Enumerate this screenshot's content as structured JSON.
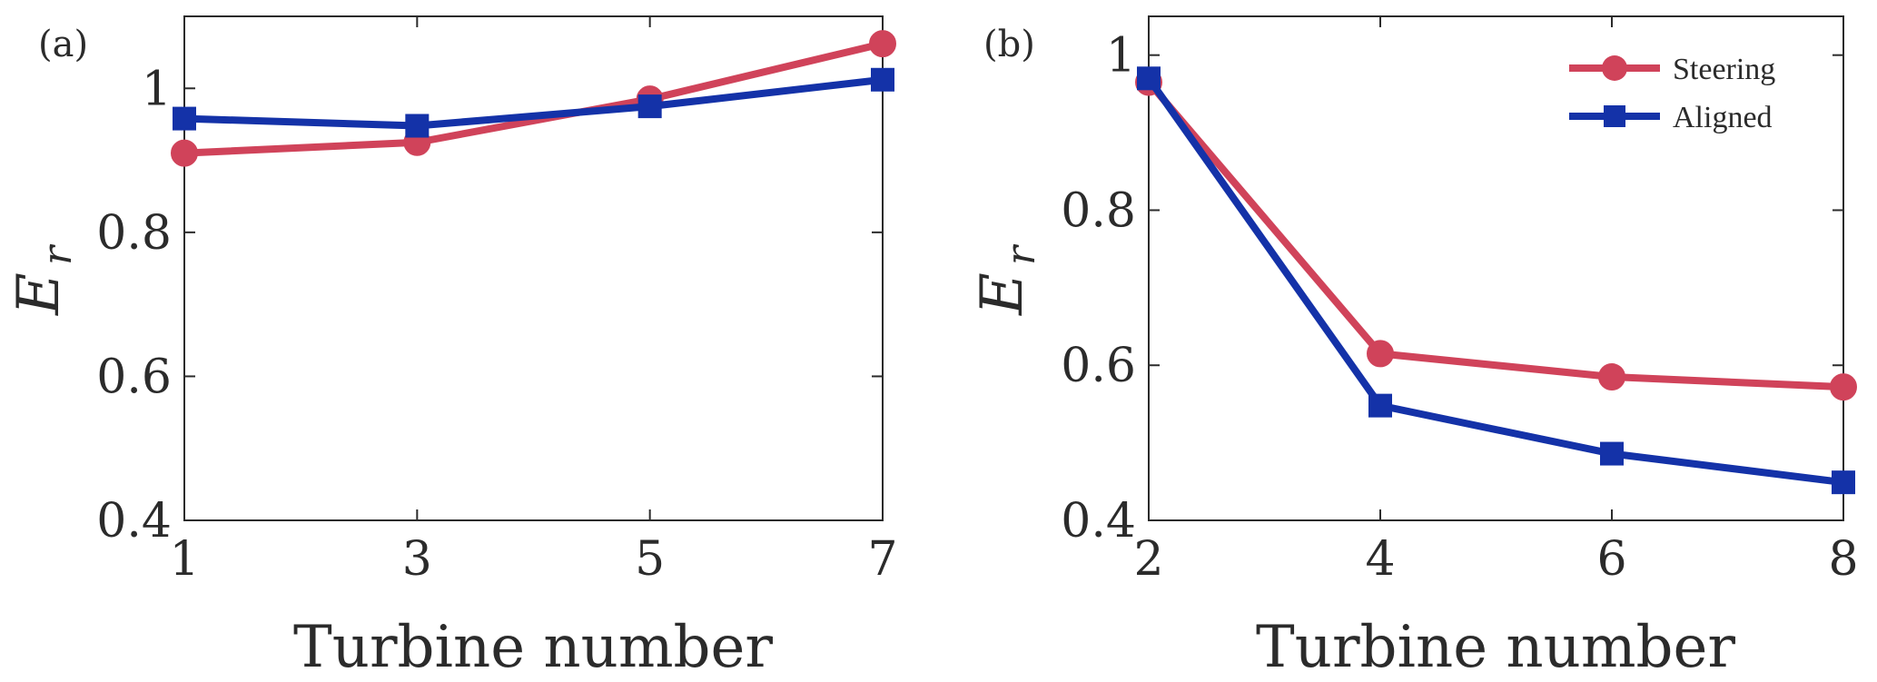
{
  "chart_data": [
    {
      "type": "line",
      "panel_label": "(a)",
      "xlabel": "Turbine number",
      "ylabel": {
        "main": "E",
        "sub": "r"
      },
      "x": [
        1,
        3,
        5,
        7
      ],
      "xticks": [
        1,
        3,
        5,
        7
      ],
      "xlim": [
        1,
        7
      ],
      "ylim": [
        0.4,
        1.1
      ],
      "yticks": [
        0.4,
        0.6,
        0.8,
        1
      ],
      "ytick_labels": [
        "0.4",
        "0.6",
        "0.8",
        "1"
      ],
      "legend": null,
      "series": [
        {
          "name": "Steering",
          "color": "#d0435a",
          "marker": "circle",
          "values": [
            0.91,
            0.925,
            0.985,
            1.062
          ]
        },
        {
          "name": "Aligned",
          "color": "#1432a8",
          "marker": "square",
          "values": [
            0.958,
            0.948,
            0.975,
            1.012
          ]
        }
      ]
    },
    {
      "type": "line",
      "panel_label": "(b)",
      "xlabel": "Turbine number",
      "ylabel": {
        "main": "E",
        "sub": "r"
      },
      "x": [
        2,
        4,
        6,
        8
      ],
      "xticks": [
        2,
        4,
        6,
        8
      ],
      "xlim": [
        2,
        8
      ],
      "ylim": [
        0.4,
        1.05
      ],
      "yticks": [
        0.4,
        0.6,
        0.8,
        1
      ],
      "ytick_labels": [
        "0.4",
        "0.6",
        "0.8",
        "1"
      ],
      "legend": "top-right",
      "series": [
        {
          "name": "Steering",
          "color": "#d0435a",
          "marker": "circle",
          "values": [
            0.965,
            0.615,
            0.585,
            0.572
          ]
        },
        {
          "name": "Aligned",
          "color": "#1432a8",
          "marker": "square",
          "values": [
            0.97,
            0.548,
            0.486,
            0.449
          ]
        }
      ]
    }
  ]
}
